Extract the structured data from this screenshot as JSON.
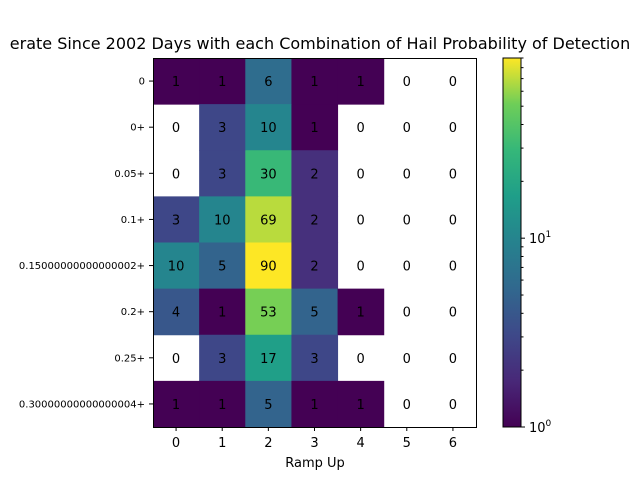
{
  "chart_data": {
    "type": "heatmap",
    "title": "erate Since 2002 Days with each Combination of Hail Probability of Detection",
    "xlabel": "Ramp Up",
    "ylabel": "",
    "x_categories": [
      "0",
      "1",
      "2",
      "3",
      "4",
      "5",
      "6"
    ],
    "y_categories": [
      "0",
      "0+",
      "0.05+",
      "0.1+",
      "0.15000000000000002+",
      "0.2+",
      "0.25+",
      "0.30000000000000004+"
    ],
    "values": [
      [
        1,
        1,
        6,
        1,
        1,
        0,
        0
      ],
      [
        0,
        3,
        10,
        1,
        0,
        0,
        0
      ],
      [
        0,
        3,
        30,
        2,
        0,
        0,
        0
      ],
      [
        3,
        10,
        69,
        2,
        0,
        0,
        0
      ],
      [
        10,
        5,
        90,
        2,
        0,
        0,
        0
      ],
      [
        4,
        1,
        53,
        5,
        1,
        0,
        0
      ],
      [
        0,
        3,
        17,
        3,
        0,
        0,
        0
      ],
      [
        1,
        1,
        5,
        1,
        1,
        0,
        0
      ]
    ],
    "colorscale": "viridis",
    "color_scale_type": "log",
    "zero_cells": "white",
    "colorbar": {
      "range": [
        1,
        90
      ],
      "major_ticks": [
        1,
        10
      ],
      "major_tick_labels": [
        "10^0",
        "10^1"
      ]
    },
    "grid": false,
    "legend": "colorbar-right"
  }
}
